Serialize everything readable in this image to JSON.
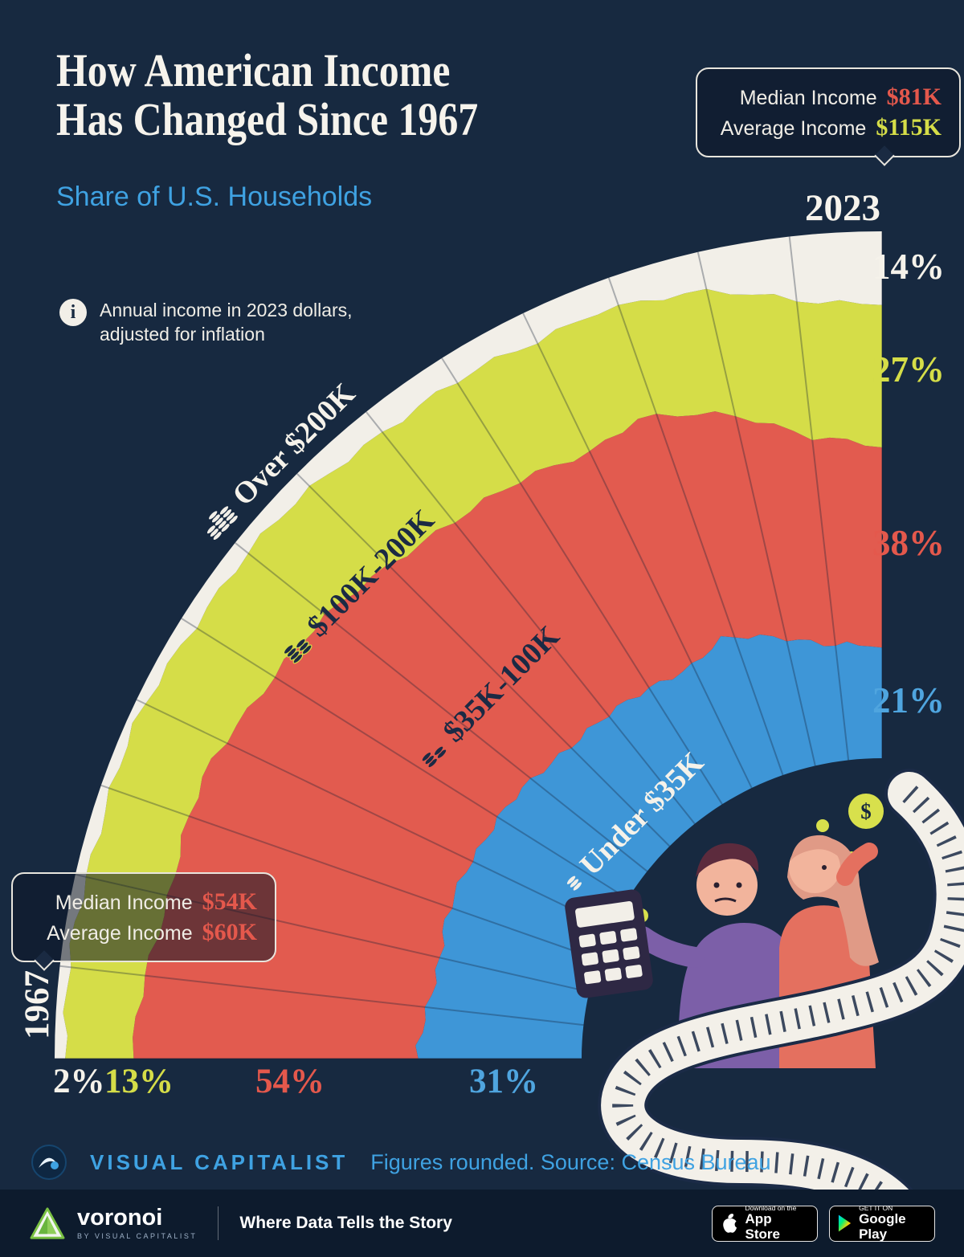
{
  "page": {
    "title_line1": "How American Income",
    "title_line2": "Has Changed Since 1967",
    "subtitle": "Share of U.S. Households",
    "note_line1": "Annual income in 2023 dollars,",
    "note_line2": "adjusted for inflation",
    "info_icon_glyph": "i"
  },
  "callout_2023": {
    "year": "2023",
    "median_label": "Median Income",
    "median_value": "$81K",
    "average_label": "Average Income",
    "average_value": "$115K"
  },
  "callout_1967": {
    "year": "1967",
    "median_label": "Median Income",
    "median_value": "$54K",
    "average_label": "Average Income",
    "average_value": "$60K"
  },
  "chart_data": {
    "type": "radial_stacked_area",
    "title": "How American Income Has Changed Since 1967",
    "subtitle": "Share of U.S. Households",
    "units": "% of U.S. households",
    "angle_axis": {
      "start": 1967,
      "end": 2023,
      "start_label": "1967",
      "end_label": "2023"
    },
    "gridline_year_step": 4,
    "control_years": [
      1967,
      1975,
      1982,
      1990,
      2000,
      2007,
      2010,
      2015,
      2019,
      2023
    ],
    "series": [
      {
        "name": "Under $35K",
        "color": "#3E96D7",
        "label_color": "#4FA5DF",
        "text_color": "#F5F2EA",
        "values": [
          31,
          29,
          30,
          28,
          26,
          26,
          28,
          25,
          22,
          21
        ],
        "start_label": "31%",
        "end_label": "21%"
      },
      {
        "name": "$35K-100K",
        "color": "#E25B4F",
        "label_color": "#E4584C",
        "text_color": "#1B2A44",
        "values": [
          54,
          53,
          52,
          50,
          47,
          45,
          45,
          43,
          40,
          38
        ],
        "start_label": "54%",
        "end_label": "38%"
      },
      {
        "name": "$100K-200K",
        "color": "#D5DD48",
        "label_color": "#D5DD48",
        "text_color": "#1B2A44",
        "values": [
          13,
          16,
          16,
          19,
          22,
          23,
          22,
          24,
          26,
          27
        ],
        "start_label": "13%",
        "end_label": "27%"
      },
      {
        "name": "Over $200K",
        "color": "#F2EFE8",
        "label_color": "#F5F2EA",
        "text_color": "#F5F2EA",
        "values": [
          2,
          2,
          2,
          3,
          5,
          6,
          5,
          8,
          12,
          14
        ],
        "start_label": "2%",
        "end_label": "14%"
      }
    ],
    "annotations": {
      "income_1967": {
        "median": "$54K",
        "average": "$60K"
      },
      "income_2023": {
        "median": "$81K",
        "average": "$115K"
      }
    }
  },
  "illustration": {
    "dollar_sign": "$"
  },
  "icons": {
    "info_icon": "i-circle",
    "coins_icon": "coin-stack",
    "dollar_coin_icon": "$-coin",
    "apple_icon": "apple",
    "google_play_icon": "play-triangle"
  },
  "footer": {
    "brand": "VISUAL CAPITALIST",
    "source": "Figures rounded. Source: Census Bureau"
  },
  "bottombar": {
    "brand": "voronoi",
    "brand_sub": "BY VISUAL CAPITALIST",
    "tagline": "Where Data Tells the Story",
    "appstore": {
      "line1": "Download on the",
      "line2": "App Store"
    },
    "gplay": {
      "line1": "GET IT ON",
      "line2": "Google Play"
    }
  },
  "colors": {
    "background": "#172940",
    "bottombar_background": "#0D1B2D",
    "accent_blue": "#3FA2E2",
    "accent_red": "#E4584C",
    "accent_yellow": "#D5DD48",
    "off_white": "#F5F2EA"
  }
}
